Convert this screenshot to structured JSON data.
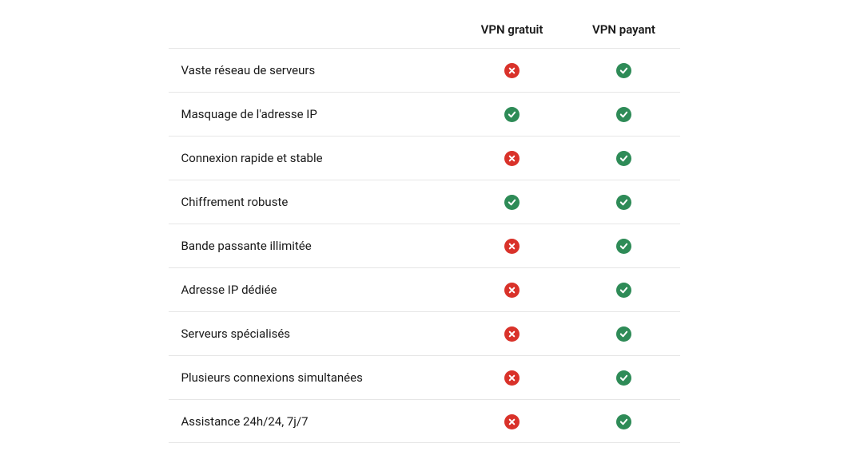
{
  "colors": {
    "yes_bg": "#2e8b57",
    "no_bg": "#d9322a",
    "icon_fg": "#ffffff",
    "border": "#e6e6e6",
    "text": "#1a1a1a",
    "background": "#ffffff"
  },
  "table": {
    "column_headers": [
      "VPN gratuit",
      "VPN payant"
    ],
    "rows": [
      {
        "feature": "Vaste réseau de serveurs",
        "values": [
          "no",
          "yes"
        ]
      },
      {
        "feature": "Masquage de l'adresse IP",
        "values": [
          "yes",
          "yes"
        ]
      },
      {
        "feature": "Connexion rapide et stable",
        "values": [
          "no",
          "yes"
        ]
      },
      {
        "feature": "Chiffrement robuste",
        "values": [
          "yes",
          "yes"
        ]
      },
      {
        "feature": "Bande passante illimitée",
        "values": [
          "no",
          "yes"
        ]
      },
      {
        "feature": "Adresse IP dédiée",
        "values": [
          "no",
          "yes"
        ]
      },
      {
        "feature": "Serveurs spécialisés",
        "values": [
          "no",
          "yes"
        ]
      },
      {
        "feature": "Plusieurs connexions simultanées",
        "values": [
          "no",
          "yes"
        ]
      },
      {
        "feature": "Assistance 24h/24, 7j/7",
        "values": [
          "no",
          "yes"
        ]
      }
    ]
  },
  "icons": {
    "yes": "check-icon",
    "no": "cross-icon"
  }
}
